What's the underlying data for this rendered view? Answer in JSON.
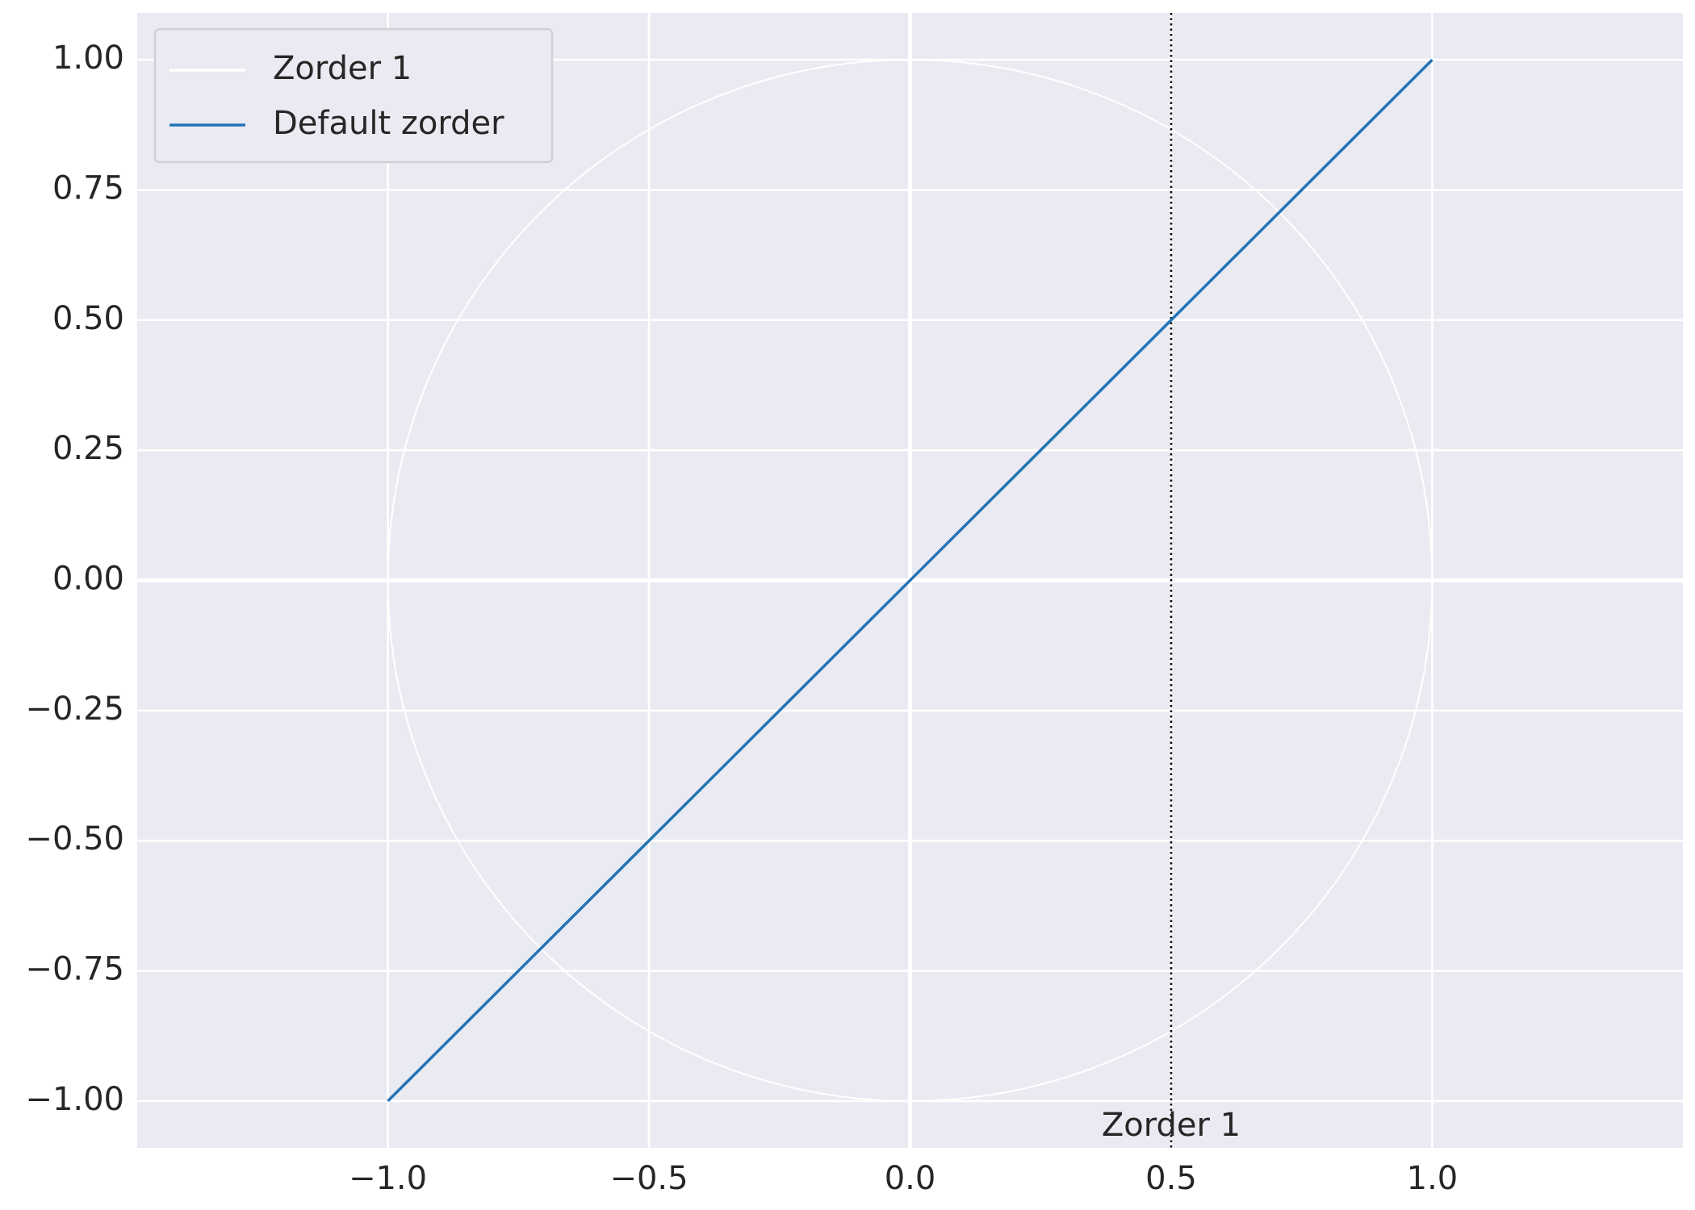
{
  "chart_data": {
    "type": "line",
    "circle": {
      "name": "Zorder 1",
      "color": "#ffffff",
      "center": [
        0,
        0
      ],
      "radius": 1
    },
    "series": [
      {
        "name": "Default zorder",
        "color": "#2474b5",
        "x": [
          -1,
          1
        ],
        "values": [
          -1,
          1
        ]
      }
    ],
    "vline": {
      "x": 0.5,
      "color": "#000000",
      "style": "dotted"
    },
    "axhline": 0,
    "axvline": 0,
    "annotations": [
      {
        "text": "Zorder 1",
        "x": 0.5,
        "y": -1.05
      }
    ],
    "xlim": [
      -1.48,
      1.48
    ],
    "ylim": [
      -1.09,
      1.09
    ],
    "xticks": [
      {
        "value": -1.0,
        "label": "−1.0"
      },
      {
        "value": -0.5,
        "label": "−0.5"
      },
      {
        "value": 0,
        "label": "0.0"
      },
      0.5,
      {
        "value": 1.0,
        "label": "1.0"
      }
    ],
    "yticks": [
      {
        "value": -1.0,
        "label": "−1.00"
      },
      {
        "value": -0.75,
        "label": "−0.75"
      },
      {
        "value": -0.5,
        "label": "−0.50"
      },
      {
        "value": -0.25,
        "label": "−0.25"
      },
      {
        "value": 0,
        "label": "0.00"
      },
      0.25,
      {
        "value": 0.5,
        "label": "0.50"
      },
      0.75,
      {
        "value": 1.0,
        "label": "1.00"
      }
    ],
    "grid": true,
    "legend": "upper left"
  }
}
